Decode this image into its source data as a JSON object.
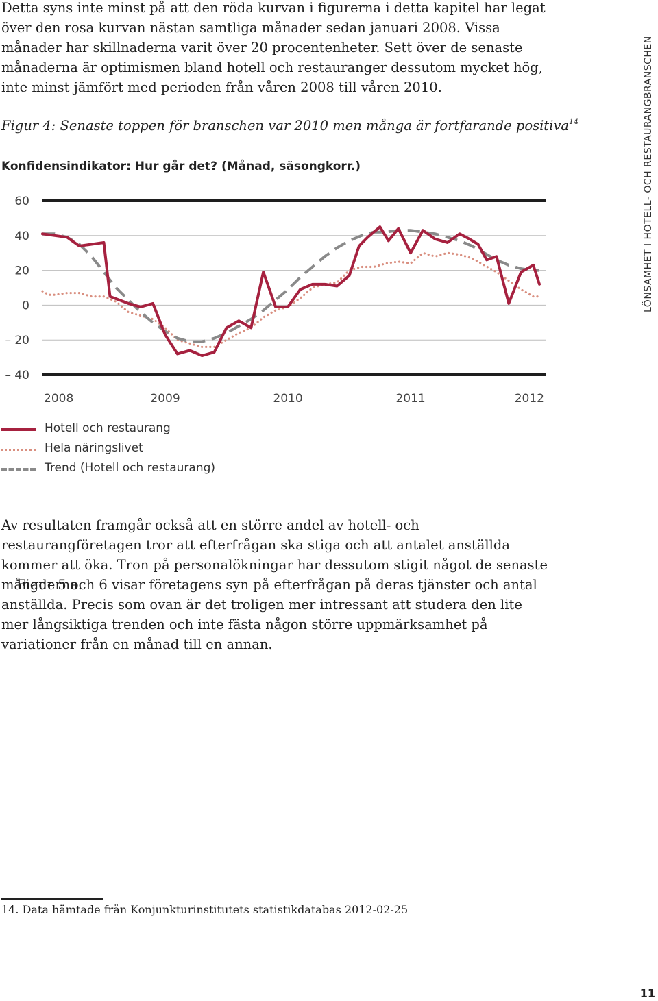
{
  "intro_text": "Detta syns inte minst på att den röda kurvan i figurerna i detta kapitel har legat över den rosa kurvan nästan samtliga månader sedan januari 2008. Vissa månader har skillnaderna varit över 20 procentenheter. Sett över de senaste månaderna är optimismen bland hotell och restauranger dessutom mycket hög, inte minst jämfört med perioden från våren 2008 till våren 2010.",
  "figure_caption": "Figur 4: Senaste toppen för branschen var 2010 men många är fortfarande positiva",
  "figure_caption_note": "14",
  "chart_data": {
    "type": "line",
    "title": "Konfidensindikator: Hur går det? (Månad, säsongkorr.)",
    "y_ticks": [
      "60",
      "40",
      "20",
      "0",
      "– 20",
      "– 40"
    ],
    "y_tick_values": [
      60,
      40,
      20,
      0,
      -20,
      -40
    ],
    "x_ticks": [
      "2008",
      "2009",
      "2010",
      "2011",
      "2012"
    ],
    "x_tick_values": [
      2008,
      2009,
      2010,
      2011,
      2012
    ],
    "ylim": [
      -40,
      60
    ],
    "xlim": [
      2008,
      2012.1
    ],
    "grid": true,
    "legend_position": "bottom-left",
    "series": [
      {
        "name": "Hotell och restaurang",
        "color": "#a6213f",
        "style": "solid",
        "x": [
          2008.0,
          2008.1,
          2008.2,
          2008.3,
          2008.4,
          2008.5,
          2008.55,
          2008.7,
          2008.8,
          2008.9,
          2009.0,
          2009.1,
          2009.2,
          2009.3,
          2009.4,
          2009.5,
          2009.6,
          2009.7,
          2009.8,
          2009.9,
          2010.0,
          2010.1,
          2010.2,
          2010.3,
          2010.4,
          2010.5,
          2010.58,
          2010.65,
          2010.75,
          2010.82,
          2010.9,
          2011.0,
          2011.1,
          2011.2,
          2011.3,
          2011.4,
          2011.48,
          2011.55,
          2011.62,
          2011.7,
          2011.8,
          2011.9,
          2012.0,
          2012.05
        ],
        "y": [
          41,
          40,
          39,
          34,
          35,
          36,
          5,
          1,
          -1,
          1,
          -17,
          -28,
          -26,
          -29,
          -27,
          -13,
          -9,
          -13,
          19,
          -1,
          -1,
          9,
          12,
          12,
          11,
          17,
          34,
          39,
          45,
          37,
          44,
          30,
          43,
          38,
          36,
          41,
          38,
          35,
          26,
          28,
          1,
          19,
          23,
          12
        ]
      },
      {
        "name": "Hela näringslivet",
        "color": "#d98f80",
        "style": "dotted",
        "x": [
          2008.0,
          2008.05,
          2008.1,
          2008.2,
          2008.3,
          2008.4,
          2008.5,
          2008.6,
          2008.7,
          2008.8,
          2008.9,
          2009.0,
          2009.1,
          2009.2,
          2009.3,
          2009.4,
          2009.5,
          2009.6,
          2009.7,
          2009.8,
          2009.9,
          2010.0,
          2010.1,
          2010.2,
          2010.3,
          2010.4,
          2010.5,
          2010.6,
          2010.7,
          2010.8,
          2010.9,
          2011.0,
          2011.1,
          2011.2,
          2011.3,
          2011.4,
          2011.5,
          2011.6,
          2011.7,
          2011.8,
          2011.9,
          2012.0,
          2012.05
        ],
        "y": [
          8,
          6,
          6,
          7,
          7,
          5,
          5,
          2,
          -4,
          -6,
          -8,
          -13,
          -20,
          -22,
          -24,
          -24,
          -20,
          -16,
          -13,
          -7,
          -3,
          -1,
          4,
          10,
          12,
          13,
          20,
          22,
          22,
          24,
          25,
          24,
          30,
          28,
          30,
          29,
          27,
          23,
          19,
          14,
          9,
          5,
          5
        ]
      },
      {
        "name": "Trend (Hotell och restaurang)",
        "color": "#8a8a8a",
        "style": "dashed",
        "x": [
          2008.0,
          2008.1,
          2008.2,
          2008.3,
          2008.4,
          2008.5,
          2008.6,
          2008.7,
          2008.8,
          2008.9,
          2009.0,
          2009.1,
          2009.2,
          2009.3,
          2009.4,
          2009.5,
          2009.6,
          2009.7,
          2009.8,
          2009.9,
          2010.0,
          2010.1,
          2010.2,
          2010.3,
          2010.4,
          2010.5,
          2010.6,
          2010.7,
          2010.8,
          2010.9,
          2011.0,
          2011.1,
          2011.2,
          2011.3,
          2011.4,
          2011.5,
          2011.6,
          2011.7,
          2011.8,
          2011.9,
          2012.0,
          2012.05
        ],
        "y": [
          41,
          41,
          39,
          35,
          28,
          19,
          10,
          3,
          -4,
          -10,
          -15,
          -19,
          -21,
          -21,
          -19,
          -16,
          -12,
          -8,
          -3,
          3,
          9,
          16,
          22,
          28,
          33,
          37,
          40,
          42,
          42,
          43,
          43,
          42,
          41,
          39,
          37,
          34,
          30,
          26,
          23,
          21,
          20,
          20
        ]
      }
    ]
  },
  "body_paragraph_1": "Av resultaten framgår också att en större andel av hotell- och restaurangföretagen tror att efterfrågan ska stiga och att antalet anställda kommer att öka. Tron på personalökningar har dessutom stigit något de senaste månaderna.",
  "body_paragraph_2": "Figur 5 och 6 visar företagens syn på efterfrågan på deras tjänster och antal anställda. Precis som ovan är det troligen mer intressant att studera den lite mer långsiktiga trenden och inte fästa någon större uppmärksamhet på variationer från en månad till en annan.",
  "footnote": "14. Data hämtade från Konjunkturinstitutets statistikdatabas 2012-02-25",
  "side_label": "LÖNSAMHET I HOTELL- OCH RESTAURANGBRANSCHEN",
  "page_number": "11"
}
